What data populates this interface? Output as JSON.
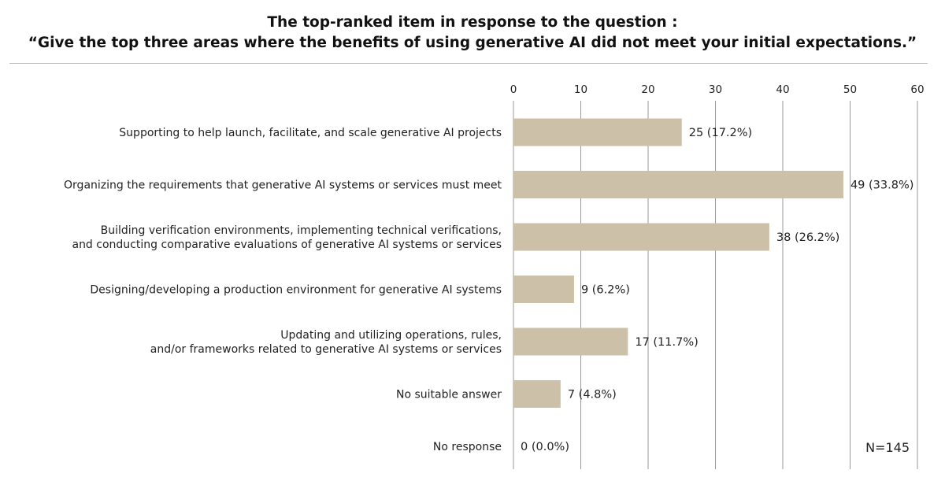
{
  "chart_data": {
    "type": "bar",
    "orientation": "horizontal",
    "title": [
      "The top-ranked item in response to the question :",
      "“Give the top three areas where the benefits of using generative AI did not meet your initial expectations.”"
    ],
    "categories": [
      [
        "Supporting to help launch, facilitate, and scale generative AI projects"
      ],
      [
        "Organizing the requirements that generative AI systems or services must meet"
      ],
      [
        "Building verification environments, implementing technical verifications,",
        "and conducting comparative evaluations of generative AI systems or services"
      ],
      [
        "Designing/developing a production environment for generative AI systems"
      ],
      [
        "Updating and utilizing operations, rules,",
        "and/or frameworks related to generative AI systems or services"
      ],
      [
        "No suitable answer"
      ],
      [
        "No response"
      ]
    ],
    "values": [
      25,
      49,
      38,
      9,
      17,
      7,
      0
    ],
    "data_labels": [
      "25 (17.2%)",
      "49 (33.8%)",
      "38 (26.2%)",
      "9 (6.2%)",
      "17 (11.7%)",
      "7 (4.8%)",
      "0 (0.0%)"
    ],
    "xlim": [
      0,
      60
    ],
    "xticks": [
      "0",
      "10",
      "20",
      "30",
      "40",
      "50",
      "60"
    ],
    "grid": true,
    "bar_color": "#cdc0a8",
    "grid_color": "#999999",
    "annotation": "N=145"
  }
}
